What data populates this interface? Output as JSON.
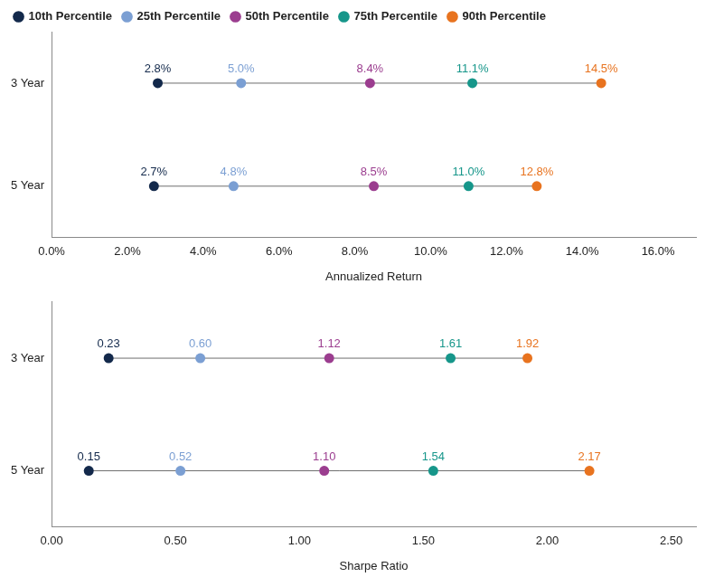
{
  "chart_data": [
    {
      "type": "dot",
      "orientation": "horizontal",
      "legend": "top-left",
      "grid": false,
      "data_labels": true,
      "categories": [
        "3 Year",
        "5 Year"
      ],
      "xlabel": "Annualized Return",
      "xlim": [
        0,
        17
      ],
      "xticks": [
        {
          "value": 0,
          "label": "0.0%"
        },
        {
          "value": 2,
          "label": "2.0%"
        },
        {
          "value": 4,
          "label": "4.0%"
        },
        {
          "value": 6,
          "label": "6.0%"
        },
        {
          "value": 8,
          "label": "8.0%"
        },
        {
          "value": 10,
          "label": "10.0%"
        },
        {
          "value": 12,
          "label": "12.0%"
        },
        {
          "value": 14,
          "label": "14.0%"
        },
        {
          "value": 16,
          "label": "16.0%"
        }
      ],
      "series": [
        {
          "name": "10th Percentile",
          "color": "#13294b",
          "values": [
            2.8,
            2.7
          ],
          "value_labels": [
            "2.8%",
            "2.7%"
          ]
        },
        {
          "name": "25th Percentile",
          "color": "#7b9fd3",
          "values": [
            5.0,
            4.8
          ],
          "value_labels": [
            "5.0%",
            "4.8%"
          ]
        },
        {
          "name": "50th Percentile",
          "color": "#9b3d8f",
          "values": [
            8.4,
            8.5
          ],
          "value_labels": [
            "8.4%",
            "8.5%"
          ]
        },
        {
          "name": "75th Percentile",
          "color": "#16968a",
          "values": [
            11.1,
            11.0
          ],
          "value_labels": [
            "11.1%",
            "11.0%"
          ]
        },
        {
          "name": "90th Percentile",
          "color": "#e8731f",
          "values": [
            14.5,
            12.8
          ],
          "value_labels": [
            "14.5%",
            "12.8%"
          ]
        }
      ]
    },
    {
      "type": "dot",
      "orientation": "horizontal",
      "legend": false,
      "grid": false,
      "data_labels": true,
      "categories": [
        "3 Year",
        "5 Year"
      ],
      "xlabel": "Sharpe Ratio",
      "xlim": [
        0,
        2.6
      ],
      "xticks": [
        {
          "value": 0,
          "label": "0.00"
        },
        {
          "value": 0.5,
          "label": "0.50"
        },
        {
          "value": 1,
          "label": "1.00"
        },
        {
          "value": 1.5,
          "label": "1.50"
        },
        {
          "value": 2,
          "label": "2.00"
        },
        {
          "value": 2.5,
          "label": "2.50"
        }
      ],
      "series": [
        {
          "name": "10th Percentile",
          "color": "#13294b",
          "values": [
            0.23,
            0.15
          ],
          "value_labels": [
            "0.23",
            "0.15"
          ]
        },
        {
          "name": "25th Percentile",
          "color": "#7b9fd3",
          "values": [
            0.6,
            0.52
          ],
          "value_labels": [
            "0.60",
            "0.52"
          ]
        },
        {
          "name": "50th Percentile",
          "color": "#9b3d8f",
          "values": [
            1.12,
            1.1
          ],
          "value_labels": [
            "1.12",
            "1.10"
          ]
        },
        {
          "name": "75th Percentile",
          "color": "#16968a",
          "values": [
            1.61,
            1.54
          ],
          "value_labels": [
            "1.61",
            "1.54"
          ]
        },
        {
          "name": "90th Percentile",
          "color": "#e8731f",
          "values": [
            1.92,
            2.17
          ],
          "value_labels": [
            "1.92",
            "2.17"
          ]
        }
      ]
    }
  ]
}
